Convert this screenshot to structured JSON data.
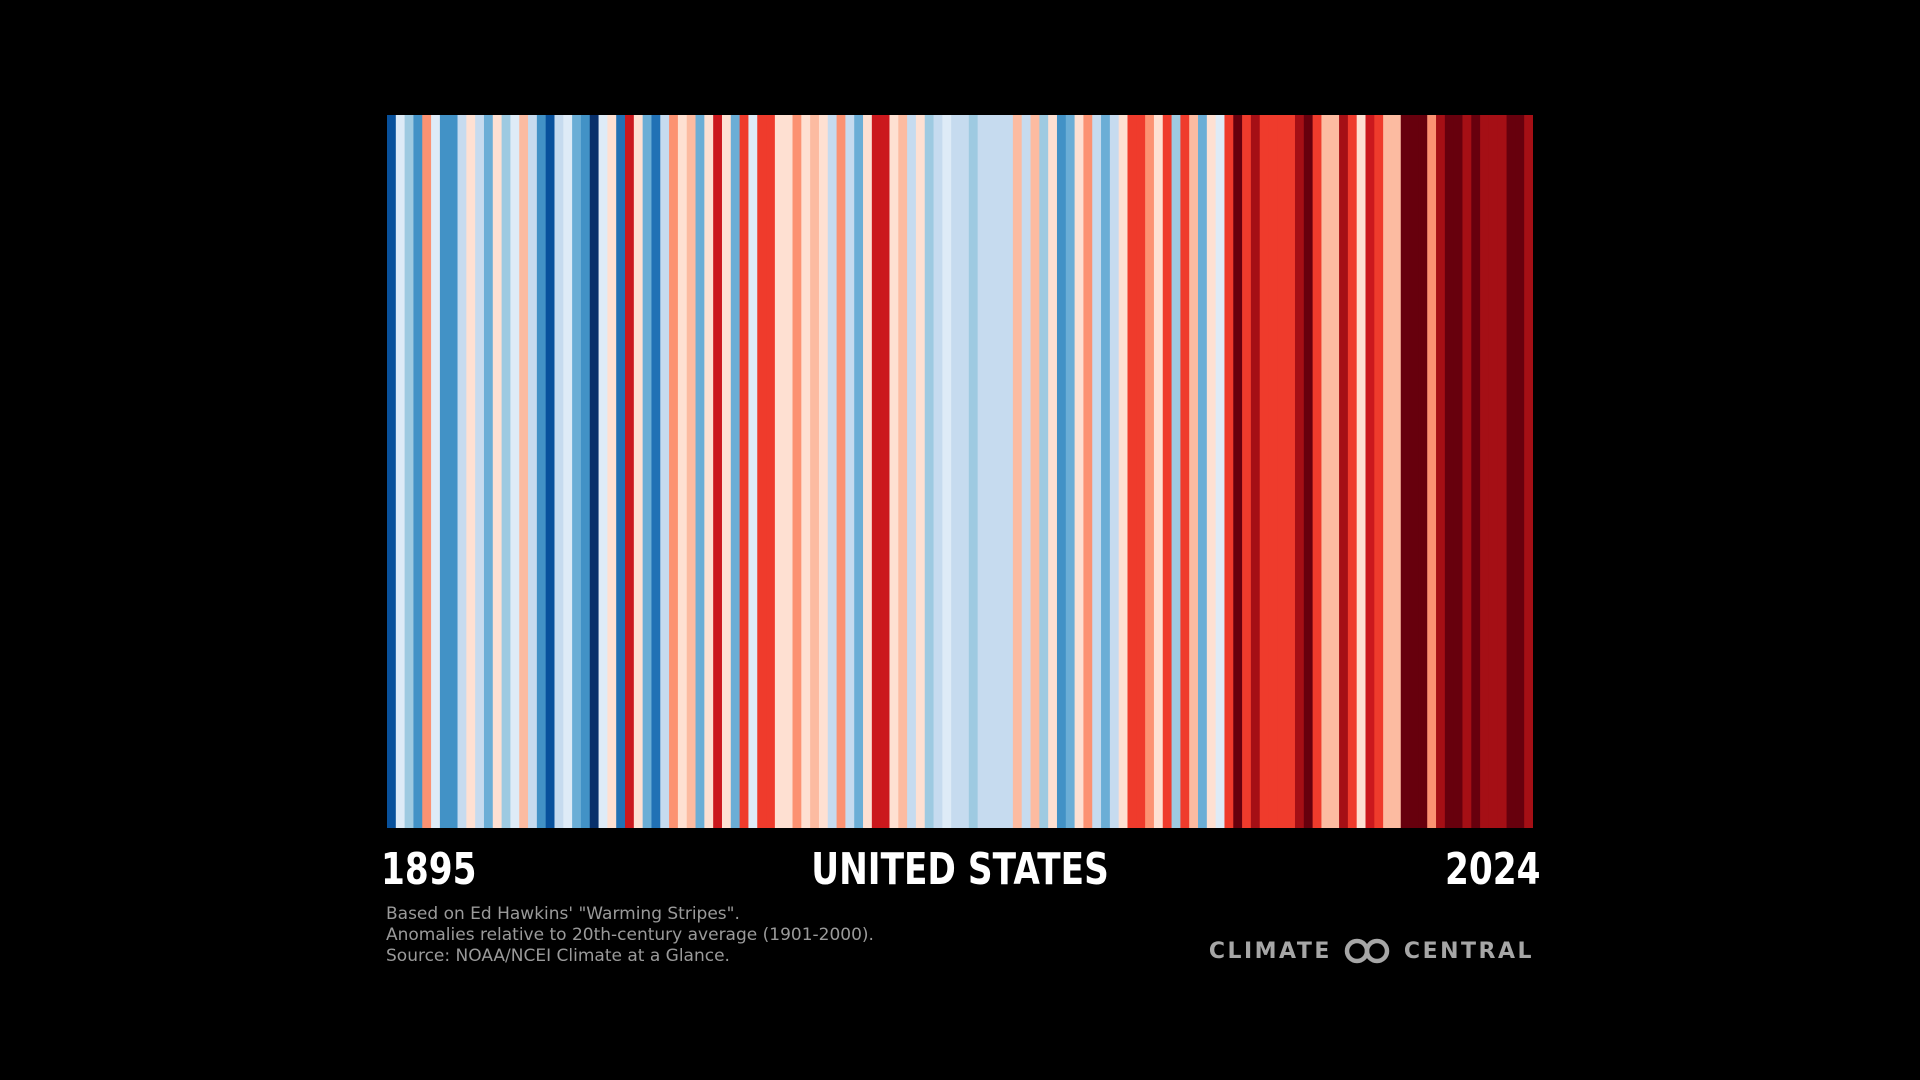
{
  "chart_data": {
    "type": "heatmap",
    "title": "UNITED STATES",
    "start_label": "1895",
    "end_label": "2024",
    "x": {
      "start": 1895,
      "end": 2024
    },
    "stripe_colors": [
      "#08519c",
      "#deebf7",
      "#9ecae1",
      "#4292c6",
      "#fc9272",
      "#deebf7",
      "#4292c6",
      "#4292c6",
      "#c6dbef",
      "#fee0d2",
      "#c6dbef",
      "#6baed6",
      "#fee0d2",
      "#9ecae1",
      "#deebf7",
      "#fcbba1",
      "#c6dbef",
      "#4292c6",
      "#08519c",
      "#c6dbef",
      "#deebf7",
      "#6baed6",
      "#4292c6",
      "#08306b",
      "#deebf7",
      "#fee0d2",
      "#2171b5",
      "#cb181d",
      "#fee0d2",
      "#6baed6",
      "#2171b5",
      "#c6dbef",
      "#fc9272",
      "#fee0d2",
      "#fcbba1",
      "#6baed6",
      "#fee0d2",
      "#cb181d",
      "#fee0d2",
      "#6baed6",
      "#ef3b2c",
      "#deebf7",
      "#ef3b2c",
      "#ef3b2c",
      "#fee0d2",
      "#fee0d2",
      "#fc9272",
      "#fee0d2",
      "#fcbba1",
      "#fee0d2",
      "#c6dbef",
      "#fc9272",
      "#c6dbef",
      "#6baed6",
      "#fee0d2",
      "#cb181d",
      "#cb181d",
      "#fee0d2",
      "#fcbba1",
      "#c6dbef",
      "#fee0d2",
      "#9ecae1",
      "#c6dbef",
      "#deebf7",
      "#c6dbef",
      "#c6dbef",
      "#9ecae1",
      "#c6dbef",
      "#c6dbef",
      "#c6dbef",
      "#c6dbef",
      "#fcbba1",
      "#c6dbef",
      "#fcbba1",
      "#9ecae1",
      "#fee0d2",
      "#4292c6",
      "#6baed6",
      "#fee0d2",
      "#fc9272",
      "#c6dbef",
      "#6baed6",
      "#c6dbef",
      "#fee0d2",
      "#ef3b2c",
      "#ef3b2c",
      "#fc9272",
      "#fee0d2",
      "#ef3b2c",
      "#9ecae1",
      "#ef3b2c",
      "#fcbba1",
      "#6baed6",
      "#fee0d2",
      "#deebf7",
      "#ef3b2c",
      "#67000d",
      "#ef3b2c",
      "#a50f15",
      "#ef3b2c",
      "#ef3b2c",
      "#ef3b2c",
      "#ef3b2c",
      "#a50f15",
      "#67000d",
      "#ef3b2c",
      "#fcbba1",
      "#fcbba1",
      "#a50f15",
      "#ef3b2c",
      "#fee0d2",
      "#cb181d",
      "#ef3b2c",
      "#fcbba1",
      "#fcbba1",
      "#67000d",
      "#67000d",
      "#67000d",
      "#fc9272",
      "#a50f15",
      "#67000d",
      "#67000d",
      "#a50f15",
      "#67000d",
      "#a50f15",
      "#a50f15",
      "#a50f15",
      "#67000d",
      "#67000d",
      "#a50f15"
    ]
  },
  "footnote": {
    "line1": "Based on Ed Hawkins' \"Warming Stripes\".",
    "line2": "Anomalies relative to 20th-century average (1901-2000).",
    "line3": "Source: NOAA/NCEI Climate at a Glance."
  },
  "brand": {
    "left": "CLIMATE",
    "right": "CENTRAL",
    "icon": "interlocking-rings-icon",
    "color": "#a6a6a6"
  }
}
